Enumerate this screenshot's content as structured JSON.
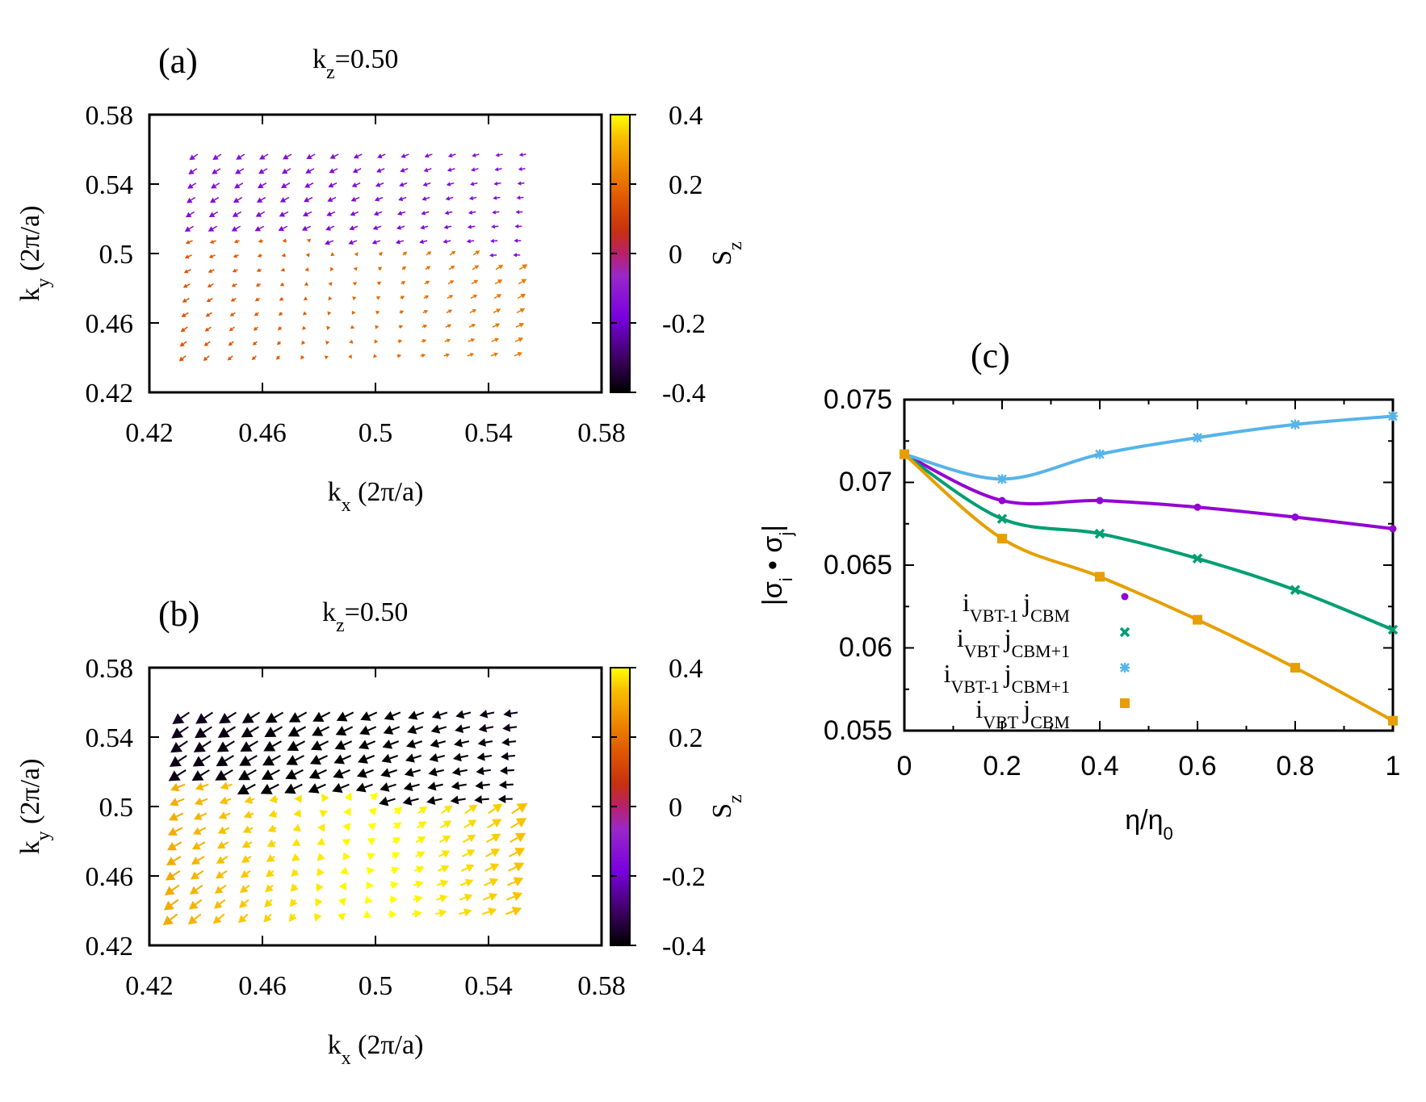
{
  "chart_data": [
    {
      "type": "quiver",
      "panel_label": "(a)",
      "subtitle_prefix": "k",
      "subtitle_sub": "z",
      "subtitle_suffix": "=0.50",
      "xlabel_main": "k",
      "xlabel_sub": "x",
      "xlabel_unit": " (2π/a)",
      "ylabel_main": "k",
      "ylabel_sub": "y",
      "ylabel_unit": " (2π/a)",
      "xlim": [
        0.42,
        0.58
      ],
      "ylim": [
        0.42,
        0.58
      ],
      "xticks": [
        "0.42",
        "0.46",
        "0.5",
        "0.54",
        "0.58"
      ],
      "yticks": [
        "0.42",
        "0.46",
        "0.5",
        "0.54",
        "0.58"
      ],
      "colorbar_label_main": "S",
      "colorbar_label_sub": "z",
      "colorbar_range": [
        -0.4,
        0.4
      ],
      "colorbar_ticks": [
        "0.4",
        "0.2",
        "0",
        "-0.2",
        "-0.4"
      ],
      "grid": {
        "x_start": 0.435,
        "x_step": 0.0083,
        "nx": 15,
        "y_start": 0.441,
        "y_step": 0.0083,
        "ny": 15
      },
      "arrow_scale": 0.65,
      "sz_upper": -0.18,
      "sz_lower": 0.16
    },
    {
      "type": "quiver",
      "panel_label": "(b)",
      "subtitle_prefix": "k",
      "subtitle_sub": "z",
      "subtitle_suffix": "=0.50",
      "xlabel_main": "k",
      "xlabel_sub": "x",
      "xlabel_unit": " (2π/a)",
      "ylabel_main": "k",
      "ylabel_sub": "y",
      "ylabel_unit": " (2π/a)",
      "xlim": [
        0.42,
        0.58
      ],
      "ylim": [
        0.42,
        0.58
      ],
      "xticks": [
        "0.42",
        "0.46",
        "0.5",
        "0.54",
        "0.58"
      ],
      "yticks": [
        "0.42",
        "0.46",
        "0.5",
        "0.54",
        "0.58"
      ],
      "colorbar_label_main": "S",
      "colorbar_label_sub": "z",
      "colorbar_range": [
        -0.4,
        0.4
      ],
      "colorbar_ticks": [
        "0.4",
        "0.2",
        "0",
        "-0.2",
        "-0.4"
      ],
      "grid": {
        "x_start": 0.432,
        "x_step": 0.0083,
        "nx": 15,
        "y_start": 0.438,
        "y_step": 0.0083,
        "ny": 15
      },
      "arrow_scale": 1.3,
      "sz_upper": -0.32,
      "sz_lower": 0.36
    },
    {
      "type": "line",
      "panel_label": "(c)",
      "xlabel_main": "η/η",
      "xlabel_sub": "0",
      "ylabel": "|σ_i • σ_j|",
      "ylabel_parts": {
        "bar_l": "|σ",
        "sub_i": "i",
        "dot": " • σ",
        "sub_j": "j",
        "bar_r": "|"
      },
      "xlim": [
        0,
        1
      ],
      "ylim": [
        0.055,
        0.075
      ],
      "xticks": [
        "0",
        "0.2",
        "0.4",
        "0.6",
        "0.8",
        "1"
      ],
      "yticks": [
        "0.075",
        "0.07",
        "0.065",
        "0.06",
        "0.055"
      ],
      "x": [
        0,
        0.2,
        0.4,
        0.6,
        0.8,
        1.0
      ],
      "series": [
        {
          "name": "i_VBT-1 j_CBM",
          "legend_i": "i",
          "legend_i_sub": "VBT-1",
          "legend_j": "j",
          "legend_j_sub": "CBM",
          "color": "#9400d3",
          "marker": "dot",
          "values": [
            0.0717,
            0.0689,
            0.0689,
            0.0685,
            0.0679,
            0.0672
          ]
        },
        {
          "name": "i_VBT j_CBM+1",
          "legend_i": "i",
          "legend_i_sub": "VBT",
          "legend_j": "j",
          "legend_j_sub": "CBM+1",
          "color": "#009e73",
          "marker": "x",
          "values": [
            0.0717,
            0.0678,
            0.0669,
            0.0654,
            0.0635,
            0.0611
          ]
        },
        {
          "name": "i_VBT-1 j_CBM+1",
          "legend_i": "i",
          "legend_i_sub": "VBT-1",
          "legend_j": "j",
          "legend_j_sub": "CBM+1",
          "color": "#56b4e9",
          "marker": "star",
          "values": [
            0.0717,
            0.0702,
            0.0717,
            0.0727,
            0.0735,
            0.074
          ]
        },
        {
          "name": "i_VBT j_CBM",
          "legend_i": "i",
          "legend_i_sub": "VBT",
          "legend_j": "j",
          "legend_j_sub": "CBM",
          "color": "#e69f00",
          "marker": "square",
          "values": [
            0.0717,
            0.0666,
            0.0643,
            0.0617,
            0.0588,
            0.0556
          ]
        }
      ]
    }
  ],
  "colormap": [
    "#000000",
    "#3c0060",
    "#7a00e0",
    "#9a28c8",
    "#b8206a",
    "#c83010",
    "#e05800",
    "#f09000",
    "#f8c000",
    "#ffff00"
  ]
}
